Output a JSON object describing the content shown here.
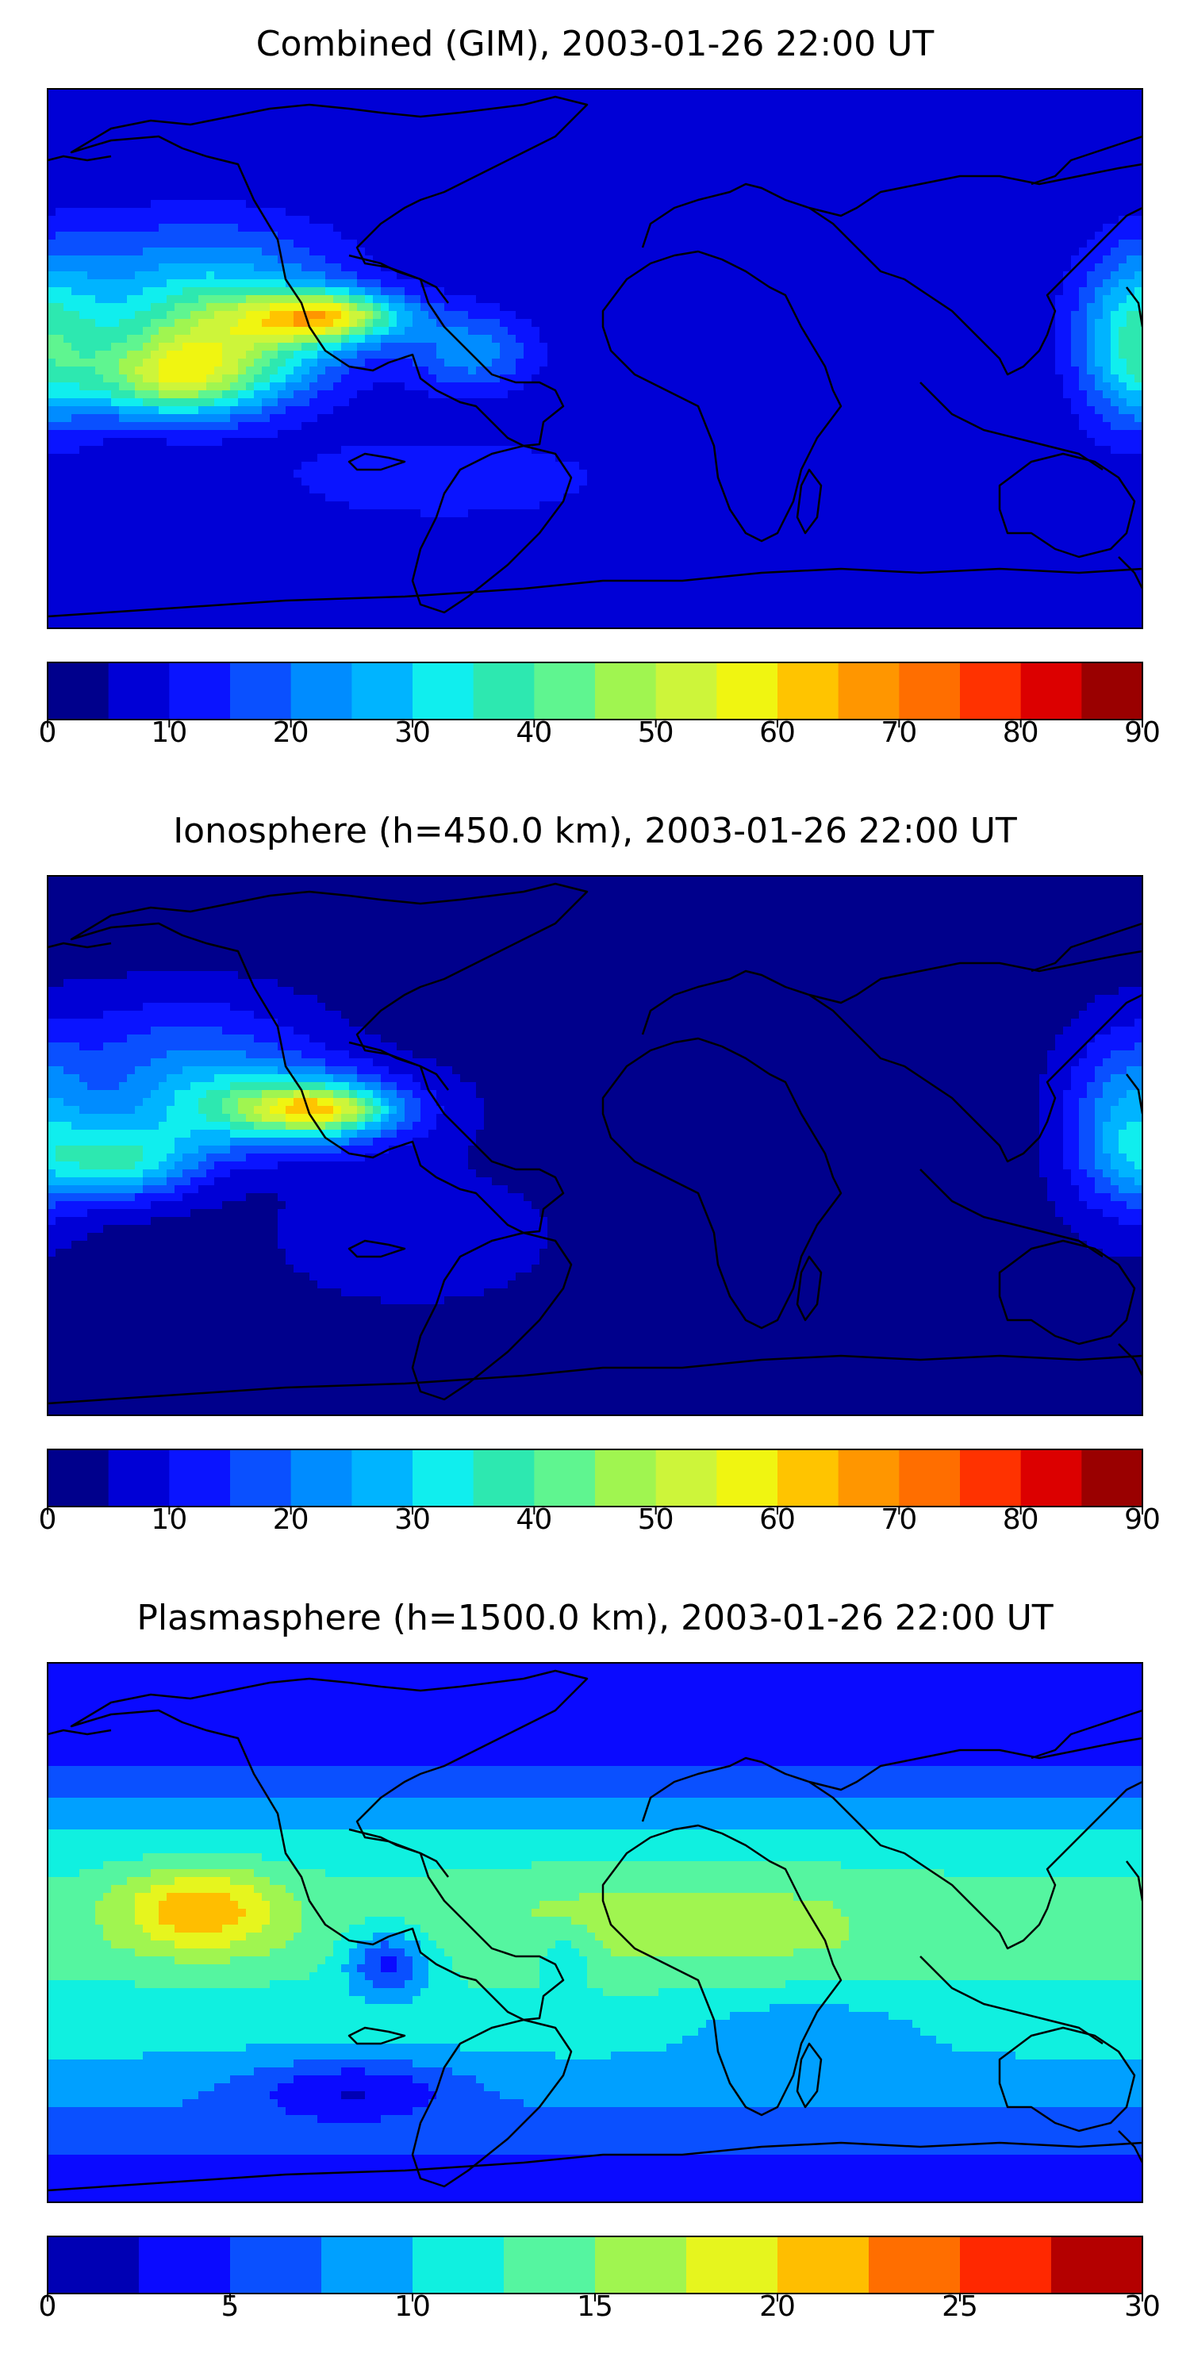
{
  "panels": [
    {
      "title": "Combined (GIM), 2003-01-26 22:00 UT",
      "colorbar": {
        "min": 0,
        "max": 90,
        "step": 5,
        "ticks": [
          "0",
          "10",
          "20",
          "30",
          "40",
          "50",
          "60",
          "70",
          "80",
          "90"
        ],
        "colors": [
          "#00008c",
          "#0000d6",
          "#0a14ff",
          "#0a50ff",
          "#008cff",
          "#00b4ff",
          "#10eeee",
          "#2de8b0",
          "#5ff590",
          "#a0f550",
          "#cdf53a",
          "#f0f511",
          "#ffc400",
          "#ff9600",
          "#ff6e00",
          "#ff3200",
          "#dc0000",
          "#9a0000"
        ]
      },
      "field": {
        "base": 1,
        "blobs": [
          {
            "lon": -125,
            "lat": 5,
            "value": 7.5,
            "slon": 28,
            "slat": 14
          },
          {
            "lon": -88,
            "lat": 14,
            "value": 8.5,
            "slon": 18,
            "slat": 6
          },
          {
            "lon": -140,
            "lat": -8,
            "value": 5.5,
            "slon": 20,
            "slat": 9
          },
          {
            "lon": 178,
            "lat": 5,
            "value": 5.5,
            "slon": 14,
            "slat": 20
          },
          {
            "lon": -130,
            "lat": 30,
            "value": 3,
            "slon": 35,
            "slat": 15
          },
          {
            "lon": -40,
            "lat": 2,
            "value": 3.5,
            "slon": 15,
            "slat": 10
          },
          {
            "lon": -50,
            "lat": -40,
            "value": 2,
            "slon": 40,
            "slat": 10
          }
        ]
      }
    },
    {
      "title": "Ionosphere  (h=450.0 km), 2003-01-26 22:00 UT",
      "colorbar": {
        "min": 0,
        "max": 90,
        "step": 5,
        "ticks": [
          "0",
          "10",
          "20",
          "30",
          "40",
          "50",
          "60",
          "70",
          "80",
          "90"
        ],
        "colors": [
          "#00008c",
          "#0000d6",
          "#0a14ff",
          "#0a50ff",
          "#008cff",
          "#00b4ff",
          "#10eeee",
          "#2de8b0",
          "#5ff590",
          "#a0f550",
          "#cdf53a",
          "#f0f511",
          "#ffc400",
          "#ff9600",
          "#ff6e00",
          "#ff3200",
          "#dc0000",
          "#9a0000"
        ]
      },
      "field": {
        "base": 0.5,
        "blobs": [
          {
            "lon": -105,
            "lat": 12,
            "value": 6.5,
            "slon": 30,
            "slat": 10
          },
          {
            "lon": -90,
            "lat": 12,
            "value": 6,
            "slon": 15,
            "slat": 5
          },
          {
            "lon": -155,
            "lat": -5,
            "value": 6,
            "slon": 18,
            "slat": 9
          },
          {
            "lon": 175,
            "lat": 5,
            "value": 4.5,
            "slon": 14,
            "slat": 20
          },
          {
            "lon": -135,
            "lat": 30,
            "value": 3,
            "slon": 30,
            "slat": 15
          },
          {
            "lon": -60,
            "lat": -30,
            "value": 1.5,
            "slon": 30,
            "slat": 15
          }
        ]
      }
    },
    {
      "title": "Plasmasphere (h=1500.0 km), 2003-01-26 22:00 UT",
      "colorbar": {
        "min": 0,
        "max": 30,
        "step": 2.5,
        "ticks": [
          "0",
          "5",
          "10",
          "15",
          "20",
          "25",
          "30"
        ],
        "colors": [
          "#0000b4",
          "#0a0aff",
          "#0a50ff",
          "#00a0ff",
          "#10f0e0",
          "#55f5a0",
          "#a0f550",
          "#e6f51e",
          "#ffbe00",
          "#ff6e00",
          "#ff2800",
          "#b40000"
        ]
      },
      "field": {
        "base": 1,
        "lat_profile": [
          [
            90,
            0
          ],
          [
            62,
            0.6
          ],
          [
            50,
            1.5
          ],
          [
            40,
            2.5
          ],
          [
            28,
            3.4
          ],
          [
            10,
            4.4
          ],
          [
            -5,
            4.5
          ],
          [
            -20,
            3.8
          ],
          [
            -35,
            3.3
          ],
          [
            -52,
            2.5
          ],
          [
            -62,
            1.8
          ],
          [
            -75,
            1.0
          ],
          [
            -90,
            0.5
          ]
        ],
        "blobs": [
          {
            "lon": -130,
            "lat": 8,
            "value": 3.5,
            "slon": 18,
            "slat": 10
          },
          {
            "lon": -68,
            "lat": -10,
            "value": -3.5,
            "slon": 10,
            "slat": 8
          },
          {
            "lon": -10,
            "lat": -8,
            "value": -1.5,
            "slon": 6,
            "slat": 6
          },
          {
            "lon": -80,
            "lat": -52,
            "value": -2.5,
            "slon": 25,
            "slat": 7
          },
          {
            "lon": 70,
            "lat": -32,
            "value": -1.2,
            "slon": 25,
            "slat": 8
          },
          {
            "lon": 30,
            "lat": 5,
            "value": 1.0,
            "slon": 50,
            "slat": 15
          }
        ]
      }
    }
  ]
}
